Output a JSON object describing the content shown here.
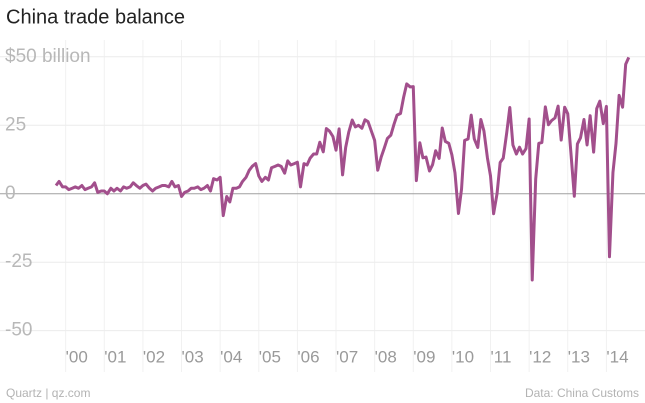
{
  "chart_data": {
    "type": "line",
    "title": "China trade balance",
    "source": "Data: China Customs",
    "credit": "Quartz | qz.com",
    "xlim": [
      1998.3,
      2015
    ],
    "xticks": [
      {
        "value": 2000,
        "label": "'00"
      },
      {
        "value": 2001,
        "label": "'01"
      },
      {
        "value": 2002,
        "label": "'02"
      },
      {
        "value": 2003,
        "label": "'03"
      },
      {
        "value": 2004,
        "label": "'04"
      },
      {
        "value": 2005,
        "label": "'05"
      },
      {
        "value": 2006,
        "label": "'06"
      },
      {
        "value": 2007,
        "label": "'07"
      },
      {
        "value": 2008,
        "label": "'08"
      },
      {
        "value": 2009,
        "label": "'09"
      },
      {
        "value": 2010,
        "label": "'10"
      },
      {
        "value": 2011,
        "label": "'11"
      },
      {
        "value": 2012,
        "label": "'12"
      },
      {
        "value": 2013,
        "label": "'13"
      },
      {
        "value": 2014,
        "label": "'14"
      }
    ],
    "ylim": [
      -64,
      55.5
    ],
    "yticks": [
      {
        "value": 50,
        "label": "$50 billion"
      },
      25,
      0,
      -25,
      -50
    ],
    "grid": true,
    "x": [
      1999.75,
      1999.83,
      1999.92,
      2000.0,
      2000.08,
      2000.17,
      2000.25,
      2000.33,
      2000.42,
      2000.5,
      2000.58,
      2000.67,
      2000.75,
      2000.83,
      2000.92,
      2001.0,
      2001.08,
      2001.17,
      2001.25,
      2001.33,
      2001.42,
      2001.5,
      2001.58,
      2001.67,
      2001.75,
      2001.83,
      2001.92,
      2002.0,
      2002.08,
      2002.17,
      2002.25,
      2002.33,
      2002.42,
      2002.5,
      2002.58,
      2002.67,
      2002.75,
      2002.83,
      2002.92,
      2003.0,
      2003.08,
      2003.17,
      2003.25,
      2003.33,
      2003.42,
      2003.5,
      2003.58,
      2003.67,
      2003.75,
      2003.83,
      2003.92,
      2004.0,
      2004.08,
      2004.17,
      2004.25,
      2004.33,
      2004.42,
      2004.5,
      2004.58,
      2004.67,
      2004.75,
      2004.83,
      2004.92,
      2005.0,
      2005.08,
      2005.17,
      2005.25,
      2005.33,
      2005.42,
      2005.5,
      2005.58,
      2005.67,
      2005.75,
      2005.83,
      2005.92,
      2006.0,
      2006.08,
      2006.17,
      2006.25,
      2006.33,
      2006.42,
      2006.5,
      2006.58,
      2006.67,
      2006.75,
      2006.83,
      2006.92,
      2007.0,
      2007.08,
      2007.17,
      2007.25,
      2007.33,
      2007.42,
      2007.5,
      2007.58,
      2007.67,
      2007.75,
      2007.83,
      2007.92,
      2008.0,
      2008.08,
      2008.17,
      2008.25,
      2008.33,
      2008.42,
      2008.5,
      2008.58,
      2008.67,
      2008.75,
      2008.83,
      2008.92,
      2009.0,
      2009.08,
      2009.17,
      2009.25,
      2009.33,
      2009.42,
      2009.5,
      2009.58,
      2009.67,
      2009.75,
      2009.83,
      2009.92,
      2010.0,
      2010.08,
      2010.17,
      2010.25,
      2010.33,
      2010.42,
      2010.5,
      2010.58,
      2010.67,
      2010.75,
      2010.83,
      2010.92,
      2011.0,
      2011.08,
      2011.17,
      2011.25,
      2011.33,
      2011.42,
      2011.5,
      2011.58,
      2011.67,
      2011.75,
      2011.83,
      2011.92,
      2012.0,
      2012.08,
      2012.17,
      2012.25,
      2012.33,
      2012.42,
      2012.5,
      2012.58,
      2012.67,
      2012.75,
      2012.83,
      2012.92,
      2013.0,
      2013.08,
      2013.17,
      2013.25,
      2013.33,
      2013.42,
      2013.5,
      2013.58,
      2013.67,
      2013.75,
      2013.83,
      2013.92,
      2014.0,
      2014.08,
      2014.17,
      2014.25,
      2014.33,
      2014.42,
      2014.5,
      2014.58
    ],
    "series": [
      {
        "color": "#a24f8c",
        "values": [
          3,
          4.5,
          2.5,
          2.5,
          1.5,
          2,
          2.5,
          2,
          3,
          1.5,
          2,
          2.5,
          4,
          0.5,
          1,
          1,
          0,
          2,
          1,
          2,
          1,
          2.5,
          2,
          2.5,
          4,
          3,
          2,
          3,
          3.5,
          2,
          1,
          2,
          2.5,
          3,
          3,
          2.5,
          4.5,
          2.5,
          3,
          -1,
          0.5,
          1,
          2,
          2,
          2.5,
          1.5,
          2,
          3,
          1,
          5.5,
          5,
          6,
          -8,
          -1,
          -3,
          2,
          2,
          2.5,
          4.5,
          6,
          8.5,
          10,
          11,
          6.5,
          4.5,
          6,
          5,
          9.5,
          10,
          10.5,
          10,
          7.5,
          12,
          10.5,
          11,
          11.5,
          2.5,
          11,
          10.5,
          13,
          14.5,
          14.5,
          18.8,
          15.3,
          23.8,
          22.9,
          20.9,
          15.9,
          23.7,
          6.9,
          16.9,
          22.5,
          26.9,
          24.4,
          25,
          23.9,
          27,
          26.3,
          22.7,
          19.5,
          8.6,
          13.4,
          16.7,
          20.2,
          21.4,
          25.3,
          28.7,
          29.3,
          35.2,
          40.1,
          39,
          39.1,
          4.8,
          18.6,
          13.1,
          13.4,
          8.3,
          10.6,
          15.7,
          12.9,
          24,
          19.1,
          18.4,
          14.2,
          7.6,
          -7.2,
          1.7,
          19.5,
          20,
          28.7,
          20,
          16.9,
          27.1,
          22.9,
          13.1,
          6.5,
          -7.3,
          0.1,
          11.4,
          13,
          22.3,
          31.5,
          17.8,
          14.5,
          17,
          14.5,
          16.5,
          27.3,
          -31.5,
          5.4,
          18.4,
          18.7,
          31.7,
          25.2,
          26.7,
          27.7,
          32,
          19.6,
          31.6,
          29.2,
          15.3,
          -0.9,
          18.2,
          20.4,
          27.1,
          17.8,
          28.5,
          15.2,
          31.1,
          33.8,
          25.6,
          31.9,
          -23,
          7.7,
          18.5,
          35.9,
          31.6,
          47.3,
          49.8
        ]
      }
    ]
  }
}
